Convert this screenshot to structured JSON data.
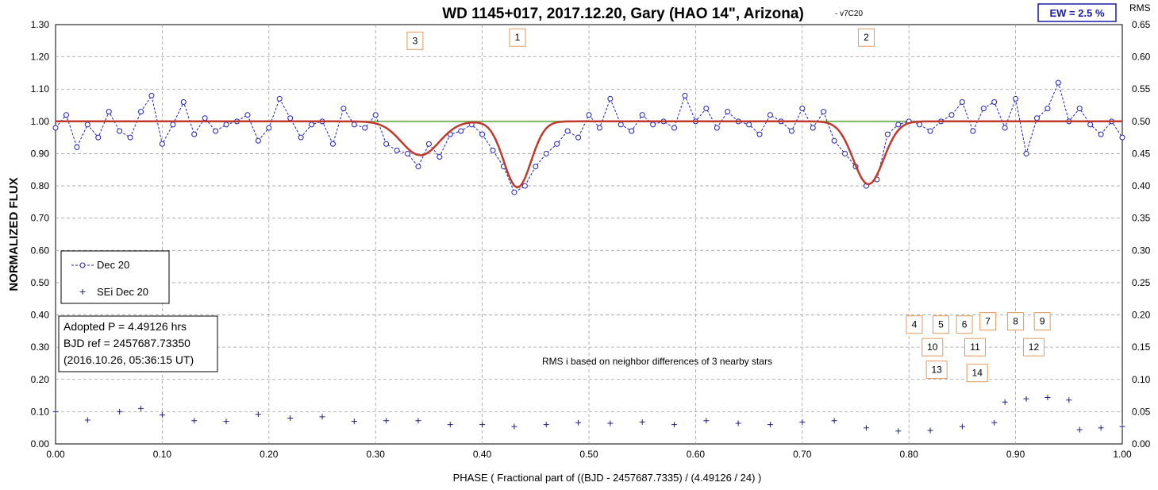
{
  "chart_data": {
    "type": "scatter",
    "title": "WD 1145+017, 2017.12.20, Gary (HAO 14\", Arizona)",
    "version_tag": "- v7C20",
    "ew_label": "EW =  2.5 %",
    "xlabel": "PHASE  ( Fractional part of ((BJD - 2457687.7335)  / (4.49126  / 24) )",
    "ylabel": "NORMALIZED  FLUX",
    "y2label": "RMS",
    "xlim": [
      0,
      1
    ],
    "ylim": [
      0,
      1.3
    ],
    "y2lim": [
      0,
      0.65
    ],
    "xticks": [
      "0.00",
      "0.10",
      "0.20",
      "0.30",
      "0.40",
      "0.50",
      "0.60",
      "0.70",
      "0.80",
      "0.90",
      "1.00"
    ],
    "yticks": [
      "0.00",
      "0.10",
      "0.20",
      "0.30",
      "0.40",
      "0.50",
      "0.60",
      "0.70",
      "0.80",
      "0.90",
      "1.00",
      "1.10",
      "1.20",
      "1.30"
    ],
    "y2ticks": [
      "0.00",
      "0.05",
      "0.10",
      "0.15",
      "0.20",
      "0.25",
      "0.30",
      "0.35",
      "0.40",
      "0.45",
      "0.50",
      "0.55",
      "0.60",
      "0.65"
    ],
    "grid": true,
    "legend_position": "left",
    "legend": [
      {
        "label": "Dec 20",
        "style": "dashed line with open circles",
        "color": "#2020b0"
      },
      {
        "label": "SEi Dec 20",
        "style": "plus markers",
        "color": "#202080"
      }
    ],
    "info_lines": [
      "Adopted P = 4.49126 hrs",
      "BJD ref = 2457687.73350",
      "(2016.10.26, 05:36:15 UT)"
    ],
    "note": "RMS i based on neighbor differences of 3 nearby stars",
    "colors": {
      "flux": "#2020b0",
      "rms": "#202080",
      "model": "#c0392b",
      "baseline": "#7bb661",
      "box_border": "#e39a5a",
      "grid": "#a0a0a0"
    },
    "baseline_flux": 1.0,
    "dips": [
      {
        "label": "3",
        "phase": 0.342,
        "depth": 0.105,
        "width": 0.025
      },
      {
        "label": "1",
        "phase": 0.433,
        "depth": 0.205,
        "width": 0.018
      },
      {
        "label": "2",
        "phase": 0.762,
        "depth": 0.195,
        "width": 0.02
      }
    ],
    "event_labels": [
      {
        "label": "3",
        "phase": 0.337,
        "flux": 1.25
      },
      {
        "label": "1",
        "phase": 0.433,
        "flux": 1.26
      },
      {
        "label": "2",
        "phase": 0.76,
        "flux": 1.26
      },
      {
        "label": "4",
        "phase": 0.805,
        "flux": 0.37
      },
      {
        "label": "5",
        "phase": 0.83,
        "flux": 0.37
      },
      {
        "label": "6",
        "phase": 0.852,
        "flux": 0.37
      },
      {
        "label": "7",
        "phase": 0.874,
        "flux": 0.38
      },
      {
        "label": "8",
        "phase": 0.9,
        "flux": 0.38
      },
      {
        "label": "9",
        "phase": 0.925,
        "flux": 0.38
      },
      {
        "label": "10",
        "phase": 0.822,
        "flux": 0.3
      },
      {
        "label": "11",
        "phase": 0.862,
        "flux": 0.3
      },
      {
        "label": "12",
        "phase": 0.917,
        "flux": 0.3
      },
      {
        "label": "13",
        "phase": 0.826,
        "flux": 0.23
      },
      {
        "label": "14",
        "phase": 0.864,
        "flux": 0.22
      }
    ],
    "flux_samples": [
      [
        0.0,
        0.98
      ],
      [
        0.01,
        1.02
      ],
      [
        0.02,
        0.92
      ],
      [
        0.03,
        0.99
      ],
      [
        0.04,
        0.95
      ],
      [
        0.05,
        1.03
      ],
      [
        0.06,
        0.97
      ],
      [
        0.07,
        0.95
      ],
      [
        0.08,
        1.03
      ],
      [
        0.09,
        1.08
      ],
      [
        0.1,
        0.93
      ],
      [
        0.11,
        0.99
      ],
      [
        0.12,
        1.06
      ],
      [
        0.13,
        0.96
      ],
      [
        0.14,
        1.01
      ],
      [
        0.15,
        0.97
      ],
      [
        0.16,
        0.99
      ],
      [
        0.17,
        1.0
      ],
      [
        0.18,
        1.02
      ],
      [
        0.19,
        0.94
      ],
      [
        0.2,
        0.98
      ],
      [
        0.21,
        1.07
      ],
      [
        0.22,
        1.01
      ],
      [
        0.23,
        0.95
      ],
      [
        0.24,
        0.99
      ],
      [
        0.25,
        1.0
      ],
      [
        0.26,
        0.93
      ],
      [
        0.27,
        1.04
      ],
      [
        0.28,
        0.99
      ],
      [
        0.29,
        0.98
      ],
      [
        0.3,
        1.02
      ],
      [
        0.31,
        0.93
      ],
      [
        0.32,
        0.91
      ],
      [
        0.33,
        0.9
      ],
      [
        0.34,
        0.86
      ],
      [
        0.35,
        0.93
      ],
      [
        0.36,
        0.89
      ],
      [
        0.37,
        0.96
      ],
      [
        0.38,
        0.97
      ],
      [
        0.39,
        0.99
      ],
      [
        0.4,
        0.96
      ],
      [
        0.41,
        0.91
      ],
      [
        0.42,
        0.86
      ],
      [
        0.43,
        0.78
      ],
      [
        0.44,
        0.8
      ],
      [
        0.45,
        0.86
      ],
      [
        0.46,
        0.9
      ],
      [
        0.47,
        0.93
      ],
      [
        0.48,
        0.97
      ],
      [
        0.49,
        0.95
      ],
      [
        0.5,
        1.02
      ],
      [
        0.51,
        0.98
      ],
      [
        0.52,
        1.07
      ],
      [
        0.53,
        0.99
      ],
      [
        0.54,
        0.97
      ],
      [
        0.55,
        1.02
      ],
      [
        0.56,
        0.99
      ],
      [
        0.57,
        1.0
      ],
      [
        0.58,
        0.98
      ],
      [
        0.59,
        1.08
      ],
      [
        0.6,
        1.0
      ],
      [
        0.61,
        1.04
      ],
      [
        0.62,
        0.98
      ],
      [
        0.63,
        1.03
      ],
      [
        0.64,
        1.0
      ],
      [
        0.65,
        0.99
      ],
      [
        0.66,
        0.96
      ],
      [
        0.67,
        1.02
      ],
      [
        0.68,
        1.0
      ],
      [
        0.69,
        0.97
      ],
      [
        0.7,
        1.04
      ],
      [
        0.71,
        0.98
      ],
      [
        0.72,
        1.03
      ],
      [
        0.73,
        0.94
      ],
      [
        0.74,
        0.9
      ],
      [
        0.75,
        0.86
      ],
      [
        0.76,
        0.8
      ],
      [
        0.77,
        0.82
      ],
      [
        0.78,
        0.96
      ],
      [
        0.79,
        0.99
      ],
      [
        0.8,
        1.0
      ],
      [
        0.81,
        0.99
      ],
      [
        0.82,
        0.97
      ],
      [
        0.83,
        1.0
      ],
      [
        0.84,
        1.02
      ],
      [
        0.85,
        1.06
      ],
      [
        0.86,
        0.97
      ],
      [
        0.87,
        1.04
      ],
      [
        0.88,
        1.06
      ],
      [
        0.89,
        0.98
      ],
      [
        0.9,
        1.07
      ],
      [
        0.91,
        0.9
      ],
      [
        0.92,
        1.01
      ],
      [
        0.93,
        1.04
      ],
      [
        0.94,
        1.12
      ],
      [
        0.95,
        1.0
      ],
      [
        0.96,
        1.04
      ],
      [
        0.97,
        0.99
      ],
      [
        0.98,
        0.96
      ],
      [
        0.99,
        1.0
      ],
      [
        1.0,
        0.95
      ]
    ],
    "rms_samples": [
      [
        0.0,
        0.05
      ],
      [
        0.03,
        0.037
      ],
      [
        0.06,
        0.05
      ],
      [
        0.08,
        0.055
      ],
      [
        0.1,
        0.045
      ],
      [
        0.13,
        0.036
      ],
      [
        0.16,
        0.035
      ],
      [
        0.19,
        0.046
      ],
      [
        0.22,
        0.04
      ],
      [
        0.25,
        0.042
      ],
      [
        0.28,
        0.035
      ],
      [
        0.31,
        0.036
      ],
      [
        0.34,
        0.036
      ],
      [
        0.37,
        0.03
      ],
      [
        0.4,
        0.03
      ],
      [
        0.43,
        0.027
      ],
      [
        0.46,
        0.03
      ],
      [
        0.49,
        0.033
      ],
      [
        0.52,
        0.032
      ],
      [
        0.55,
        0.034
      ],
      [
        0.58,
        0.03
      ],
      [
        0.61,
        0.036
      ],
      [
        0.64,
        0.032
      ],
      [
        0.67,
        0.03
      ],
      [
        0.7,
        0.034
      ],
      [
        0.73,
        0.036
      ],
      [
        0.76,
        0.025
      ],
      [
        0.79,
        0.02
      ],
      [
        0.82,
        0.021
      ],
      [
        0.85,
        0.027
      ],
      [
        0.88,
        0.033
      ],
      [
        0.89,
        0.065
      ],
      [
        0.91,
        0.07
      ],
      [
        0.93,
        0.072
      ],
      [
        0.95,
        0.068
      ],
      [
        0.96,
        0.022
      ],
      [
        0.98,
        0.025
      ],
      [
        1.0,
        0.027
      ]
    ]
  }
}
